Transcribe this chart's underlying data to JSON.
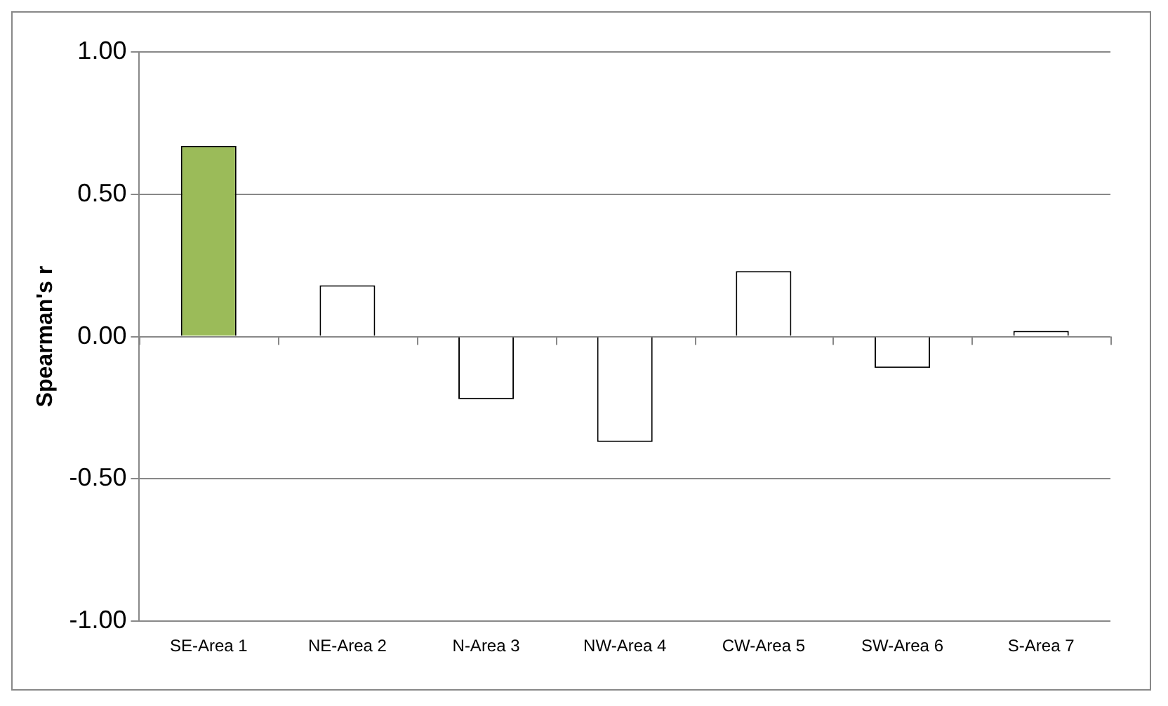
{
  "chart_data": {
    "type": "bar",
    "ylabel": "Spearman's r",
    "categories": [
      "SE-Area 1",
      "NE-Area 2",
      "N-Area 3",
      "NW-Area 4",
      "CW-Area 5",
      "SW-Area 6",
      "S-Area 7"
    ],
    "values": [
      0.67,
      0.18,
      -0.22,
      -0.37,
      0.23,
      -0.11,
      0.02
    ],
    "colors": [
      "#9bbb59",
      "#ffffff",
      "#ffffff",
      "#ffffff",
      "#ffffff",
      "#ffffff",
      "#ffffff"
    ],
    "ylim": [
      -1,
      1
    ],
    "yticks": [
      {
        "value": -1,
        "label": "-1.00"
      },
      {
        "value": -0.5,
        "label": "-0.50"
      },
      {
        "value": 0,
        "label": "0.00"
      },
      {
        "value": 0.5,
        "label": "0.50"
      },
      {
        "value": 1,
        "label": "1.00"
      }
    ],
    "grid": "y",
    "legend": false
  }
}
